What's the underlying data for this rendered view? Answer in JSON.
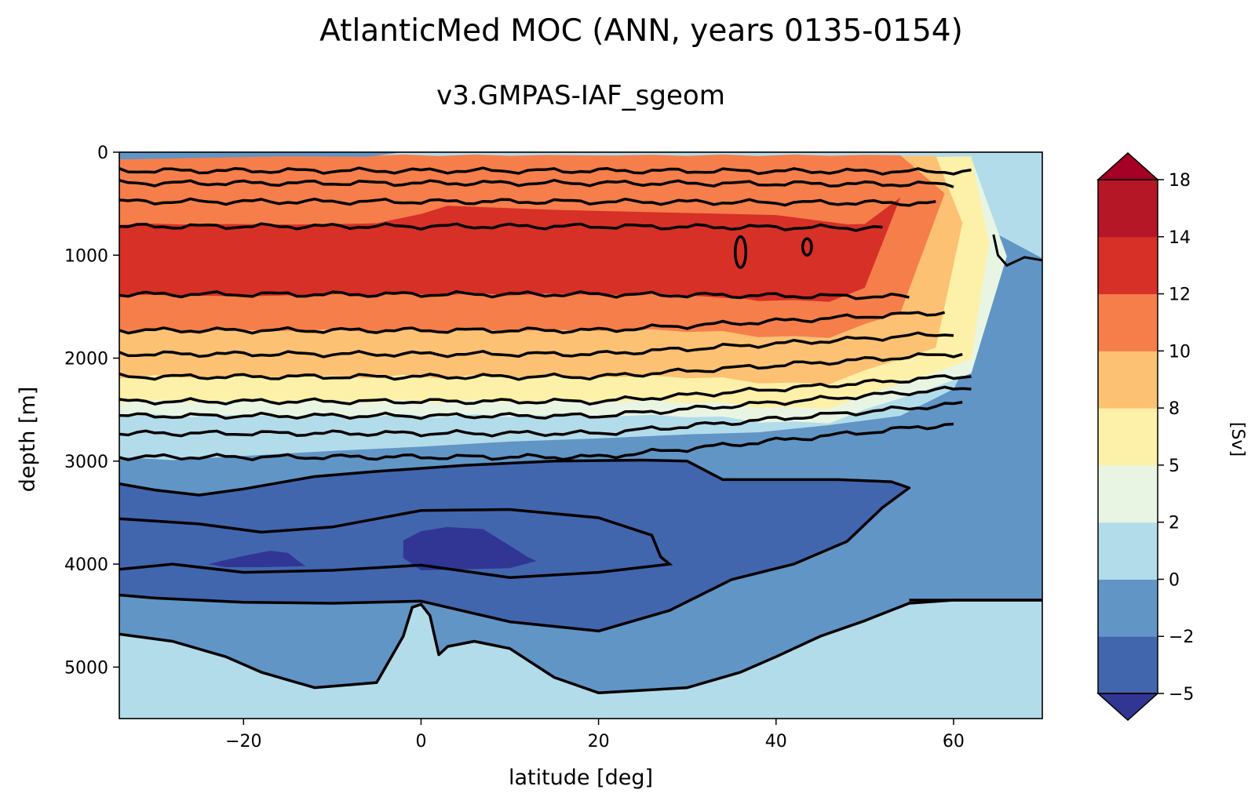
{
  "chart_data": {
    "type": "contourf",
    "title": "AtlanticMed MOC (ANN, years 0135-0154)",
    "subtitle": "v3.GMPAS-IAF_sgeom",
    "xlabel": "latitude [deg]",
    "ylabel": "depth [m]",
    "xlim": [
      -34,
      70
    ],
    "ylim": [
      0,
      5500
    ],
    "y_inverted": true,
    "xticks": [
      -20,
      0,
      20,
      40,
      60
    ],
    "xtick_labels": [
      "−20",
      "0",
      "20",
      "40",
      "60"
    ],
    "yticks": [
      0,
      1000,
      2000,
      3000,
      4000,
      5000
    ],
    "ytick_labels": [
      "0",
      "1000",
      "2000",
      "3000",
      "4000",
      "5000"
    ],
    "colorbar": {
      "label": "[Sv]",
      "levels": [
        -5,
        -2,
        0,
        2,
        5,
        8,
        10,
        12,
        14,
        18
      ],
      "tick_labels": [
        "−5",
        "−2",
        "0",
        "2",
        "5",
        "8",
        "10",
        "12",
        "14",
        "18"
      ],
      "band_colors": [
        "#4266ae",
        "#6195c6",
        "#b3dcea",
        "#e8f5e3",
        "#fdf0a8",
        "#fcc173",
        "#f57e4a",
        "#d73027",
        "#b51727"
      ],
      "under_color": "#313695",
      "over_color": "#a50026",
      "extend": "both"
    },
    "regions": [
      {
        "level": -2,
        "color": "#4266ae",
        "note": "deep cell band",
        "top": [
          [
            -34,
            3200
          ],
          [
            -30,
            3270
          ],
          [
            -25,
            3330
          ],
          [
            -20,
            3280
          ],
          [
            -12,
            3150
          ],
          [
            -5,
            3100
          ],
          [
            5,
            3050
          ],
          [
            15,
            3000
          ],
          [
            25,
            3000
          ],
          [
            30,
            2990
          ],
          [
            34,
            3150
          ],
          [
            40,
            3180
          ],
          [
            47,
            3180
          ],
          [
            53,
            3200
          ],
          [
            55,
            3280
          ],
          [
            52,
            3500
          ],
          [
            48,
            3800
          ],
          [
            42,
            4000
          ],
          [
            35,
            4150
          ],
          [
            28,
            4450
          ],
          [
            20,
            4650
          ],
          [
            10,
            4550
          ],
          [
            0,
            4350
          ],
          [
            -10,
            4350
          ],
          [
            -20,
            4380
          ],
          [
            -30,
            4350
          ],
          [
            -34,
            4300
          ]
        ],
        "bottom": []
      },
      {
        "level": -5,
        "color": "#313695",
        "note": "minimum patch west",
        "poly": [
          [
            -24,
            4000
          ],
          [
            -22,
            3960
          ],
          [
            -20,
            3920
          ],
          [
            -17,
            3870
          ],
          [
            -15,
            3890
          ],
          [
            -14,
            3960
          ],
          [
            -13,
            4020
          ],
          [
            -18,
            4030
          ],
          [
            -22,
            4030
          ]
        ]
      },
      {
        "level": -5,
        "color": "#313695",
        "note": "minimum patch east",
        "poly": [
          [
            -2,
            3770
          ],
          [
            0,
            3680
          ],
          [
            3,
            3640
          ],
          [
            7,
            3660
          ],
          [
            10,
            3820
          ],
          [
            12,
            3930
          ],
          [
            13,
            3970
          ],
          [
            10,
            4040
          ],
          [
            5,
            4050
          ],
          [
            0,
            4060
          ],
          [
            -2,
            3940
          ]
        ]
      }
    ],
    "contour_levels": [
      -5,
      -2,
      0,
      2,
      5,
      8,
      10,
      12,
      14,
      18
    ],
    "annotations": []
  }
}
